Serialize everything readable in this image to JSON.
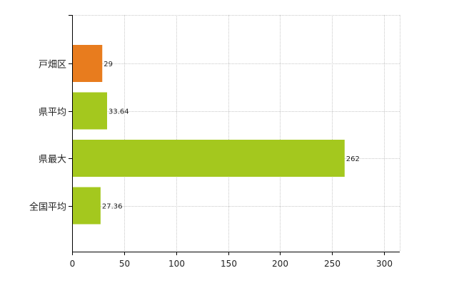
{
  "chart_data": {
    "type": "bar",
    "orientation": "horizontal",
    "title": "",
    "xlabel": "",
    "ylabel": "",
    "categories": [
      "戸畑区",
      "県平均",
      "県最大",
      "全国平均"
    ],
    "values": [
      29,
      33.64,
      262,
      27.36
    ],
    "data_labels": [
      "29",
      "33.64",
      "262",
      "27.36"
    ],
    "bar_colors": [
      "#e87c1e",
      "#a4c81e",
      "#a4c81e",
      "#a4c81e"
    ],
    "xlim": [
      0,
      315
    ],
    "x_ticks": [
      0,
      50,
      100,
      150,
      200,
      250,
      300
    ],
    "x_tick_labels": [
      "0",
      "50",
      "100",
      "150",
      "200",
      "250",
      "300"
    ],
    "grid": true,
    "legend": "none"
  }
}
